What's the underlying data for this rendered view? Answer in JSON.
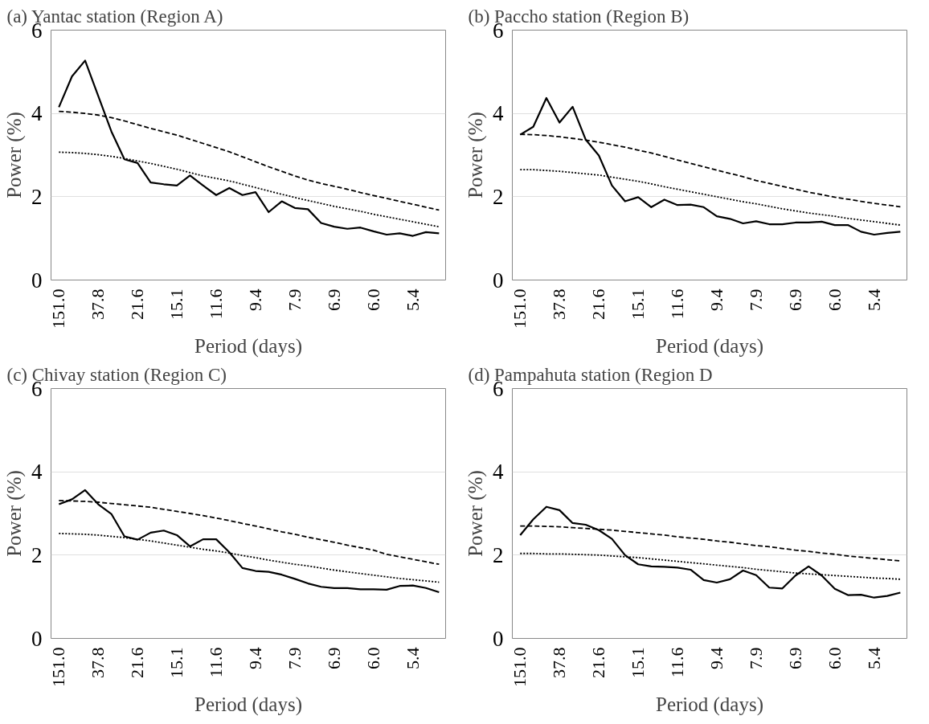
{
  "chart_data": [
    {
      "type": "line",
      "title": "(a) Yantac station (Region A)",
      "xlabel": "Period (days)",
      "ylabel": "Power (%)",
      "categories": [
        "151.0",
        null,
        null,
        "37.8",
        null,
        null,
        "21.6",
        null,
        null,
        "15.1",
        null,
        null,
        "11.6",
        null,
        null,
        "9.4",
        null,
        null,
        "7.9",
        null,
        null,
        "6.9",
        null,
        null,
        "6.0",
        null,
        null,
        "5.4",
        null,
        null
      ],
      "ylim": [
        0,
        6
      ],
      "yticks": [
        0,
        2,
        4,
        6
      ],
      "grid": "y",
      "series": [
        {
          "color": "#000000",
          "line_style": "solid",
          "values": [
            4.15,
            4.89,
            5.27,
            4.42,
            3.57,
            2.9,
            2.81,
            2.34,
            2.3,
            2.27,
            2.51,
            2.27,
            2.04,
            2.21,
            2.04,
            2.11,
            1.63,
            1.89,
            1.73,
            1.7,
            1.37,
            1.28,
            1.23,
            1.26,
            1.17,
            1.09,
            1.12,
            1.06,
            1.15,
            1.12
          ]
        },
        {
          "color": "#000000",
          "line_style": "dashed",
          "values": [
            4.05,
            4.03,
            4.0,
            3.96,
            3.9,
            3.82,
            3.73,
            3.64,
            3.56,
            3.48,
            3.38,
            3.28,
            3.18,
            3.08,
            2.96,
            2.84,
            2.72,
            2.61,
            2.5,
            2.4,
            2.32,
            2.25,
            2.18,
            2.1,
            2.03,
            1.96,
            1.89,
            1.82,
            1.75,
            1.68
          ]
        },
        {
          "color": "#000000",
          "line_style": "dotted",
          "values": [
            3.07,
            3.06,
            3.04,
            3.01,
            2.97,
            2.92,
            2.86,
            2.8,
            2.73,
            2.66,
            2.58,
            2.5,
            2.44,
            2.38,
            2.3,
            2.22,
            2.14,
            2.06,
            1.98,
            1.91,
            1.84,
            1.77,
            1.71,
            1.65,
            1.58,
            1.52,
            1.46,
            1.4,
            1.34,
            1.28
          ]
        }
      ]
    },
    {
      "type": "line",
      "title": "(b) Paccho station (Region B)",
      "xlabel": "Period (days)",
      "ylabel": "Power (%)",
      "categories": [
        "151.0",
        null,
        null,
        "37.8",
        null,
        null,
        "21.6",
        null,
        null,
        "15.1",
        null,
        null,
        "11.6",
        null,
        null,
        "9.4",
        null,
        null,
        "7.9",
        null,
        null,
        "6.9",
        null,
        null,
        "6.0",
        null,
        null,
        "5.4",
        null,
        null
      ],
      "ylim": [
        0,
        6
      ],
      "yticks": [
        0,
        2,
        4,
        6
      ],
      "grid": "y",
      "series": [
        {
          "color": "#000000",
          "line_style": "solid",
          "values": [
            3.49,
            3.68,
            4.37,
            3.78,
            4.16,
            3.37,
            2.99,
            2.27,
            1.89,
            1.99,
            1.75,
            1.93,
            1.8,
            1.81,
            1.75,
            1.53,
            1.47,
            1.36,
            1.41,
            1.34,
            1.34,
            1.38,
            1.38,
            1.4,
            1.32,
            1.32,
            1.16,
            1.09,
            1.13,
            1.16
          ]
        },
        {
          "color": "#000000",
          "line_style": "dashed",
          "values": [
            3.5,
            3.49,
            3.47,
            3.44,
            3.4,
            3.36,
            3.31,
            3.25,
            3.19,
            3.12,
            3.05,
            2.97,
            2.88,
            2.8,
            2.72,
            2.64,
            2.56,
            2.48,
            2.39,
            2.32,
            2.25,
            2.18,
            2.11,
            2.05,
            1.99,
            1.94,
            1.89,
            1.84,
            1.8,
            1.76
          ]
        },
        {
          "color": "#000000",
          "line_style": "dotted",
          "values": [
            2.65,
            2.65,
            2.63,
            2.61,
            2.58,
            2.55,
            2.52,
            2.47,
            2.42,
            2.37,
            2.31,
            2.24,
            2.18,
            2.12,
            2.06,
            2.0,
            1.94,
            1.88,
            1.83,
            1.77,
            1.71,
            1.66,
            1.61,
            1.57,
            1.53,
            1.48,
            1.44,
            1.4,
            1.36,
            1.32
          ]
        }
      ]
    },
    {
      "type": "line",
      "title": "(c) Chivay station (Region C)",
      "xlabel": "Period (days)",
      "ylabel": "Power (%)",
      "categories": [
        "151.0",
        null,
        null,
        "37.8",
        null,
        null,
        "21.6",
        null,
        null,
        "15.1",
        null,
        null,
        "11.6",
        null,
        null,
        "9.4",
        null,
        null,
        "7.9",
        null,
        null,
        "6.9",
        null,
        null,
        "6.0",
        null,
        null,
        "5.4",
        null,
        null
      ],
      "ylim": [
        0,
        6
      ],
      "yticks": [
        0,
        2,
        4,
        6
      ],
      "grid": "y",
      "series": [
        {
          "color": "#000000",
          "line_style": "solid",
          "values": [
            3.22,
            3.34,
            3.56,
            3.22,
            2.99,
            2.45,
            2.37,
            2.54,
            2.59,
            2.48,
            2.21,
            2.38,
            2.38,
            2.07,
            1.69,
            1.62,
            1.6,
            1.53,
            1.43,
            1.32,
            1.24,
            1.21,
            1.21,
            1.18,
            1.18,
            1.17,
            1.26,
            1.27,
            1.21,
            1.11
          ]
        },
        {
          "color": "#000000",
          "line_style": "dashed",
          "values": [
            3.31,
            3.3,
            3.29,
            3.27,
            3.24,
            3.21,
            3.18,
            3.15,
            3.1,
            3.05,
            3.0,
            2.95,
            2.89,
            2.83,
            2.76,
            2.7,
            2.63,
            2.56,
            2.5,
            2.43,
            2.37,
            2.31,
            2.24,
            2.18,
            2.12,
            2.02,
            1.96,
            1.9,
            1.84,
            1.78
          ]
        },
        {
          "color": "#000000",
          "line_style": "dotted",
          "values": [
            2.52,
            2.51,
            2.5,
            2.48,
            2.45,
            2.42,
            2.38,
            2.34,
            2.29,
            2.24,
            2.19,
            2.14,
            2.1,
            2.05,
            1.99,
            1.94,
            1.88,
            1.83,
            1.78,
            1.74,
            1.69,
            1.64,
            1.6,
            1.56,
            1.52,
            1.48,
            1.44,
            1.41,
            1.38,
            1.35
          ]
        }
      ]
    },
    {
      "type": "line",
      "title": "(d) Pampahuta station (Region D",
      "xlabel": "Period (days)",
      "ylabel": "Power (%)",
      "categories": [
        "151.0",
        null,
        null,
        "37.8",
        null,
        null,
        "21.6",
        null,
        null,
        "15.1",
        null,
        null,
        "11.6",
        null,
        null,
        "9.4",
        null,
        null,
        "7.9",
        null,
        null,
        "6.9",
        null,
        null,
        "6.0",
        null,
        null,
        "5.4",
        null,
        null
      ],
      "ylim": [
        0,
        6
      ],
      "yticks": [
        0,
        2,
        4,
        6
      ],
      "grid": "y",
      "series": [
        {
          "color": "#000000",
          "line_style": "solid",
          "values": [
            2.48,
            2.86,
            3.16,
            3.08,
            2.77,
            2.73,
            2.6,
            2.39,
            2.0,
            1.78,
            1.73,
            1.72,
            1.7,
            1.65,
            1.4,
            1.34,
            1.42,
            1.63,
            1.52,
            1.22,
            1.2,
            1.51,
            1.73,
            1.51,
            1.19,
            1.04,
            1.05,
            0.98,
            1.02,
            1.1
          ]
        },
        {
          "color": "#000000",
          "line_style": "dashed",
          "values": [
            2.7,
            2.7,
            2.69,
            2.68,
            2.66,
            2.64,
            2.62,
            2.6,
            2.57,
            2.54,
            2.51,
            2.48,
            2.44,
            2.41,
            2.38,
            2.34,
            2.31,
            2.27,
            2.23,
            2.2,
            2.16,
            2.12,
            2.09,
            2.05,
            2.02,
            1.98,
            1.95,
            1.92,
            1.89,
            1.86
          ]
        },
        {
          "color": "#000000",
          "line_style": "dotted",
          "values": [
            2.04,
            2.04,
            2.03,
            2.03,
            2.02,
            2.01,
            2.0,
            1.98,
            1.96,
            1.94,
            1.91,
            1.88,
            1.85,
            1.82,
            1.79,
            1.76,
            1.73,
            1.7,
            1.66,
            1.63,
            1.6,
            1.57,
            1.55,
            1.53,
            1.51,
            1.49,
            1.47,
            1.45,
            1.44,
            1.42
          ]
        }
      ]
    }
  ]
}
